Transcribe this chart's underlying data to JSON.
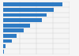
{
  "values": [
    2400,
    2050,
    1780,
    1560,
    1100,
    850,
    560,
    360,
    110,
    28
  ],
  "bar_color": "#2e7bc4",
  "background_color": "#f5f5f5",
  "plot_bg_color": "#f5f5f5",
  "xlim_max": 2700,
  "bar_height": 0.72,
  "n_bars": 10
}
